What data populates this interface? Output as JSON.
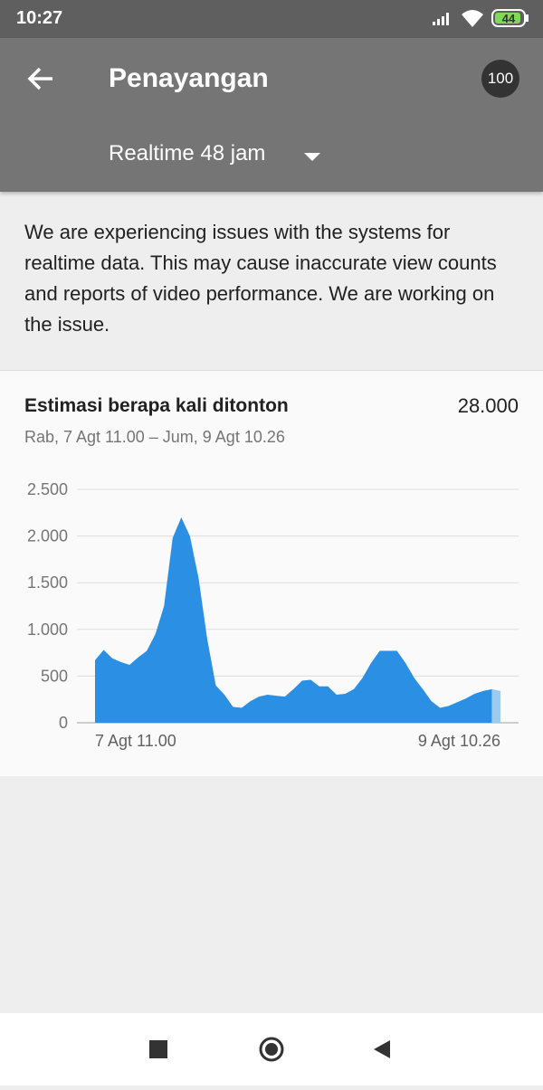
{
  "status": {
    "time": "10:27",
    "battery": "44"
  },
  "header": {
    "title": "Penayangan",
    "badge": "100",
    "dropdown": "Realtime 48 jam"
  },
  "notice": "We are experiencing issues with the systems for realtime data. This may cause inaccurate view counts and reports of video performance. We are working on the issue.",
  "card": {
    "title": "Estimasi berapa kali ditonton",
    "total": "28.000",
    "range": "Rab, 7 Agt 11.00 – Jum, 9 Agt 10.26"
  },
  "chart_data": {
    "type": "area",
    "color": "#2b8fe3",
    "partial_color": "#9ccbf0",
    "categories": [
      "7 Agt 11.00",
      null,
      null,
      null,
      null,
      null,
      null,
      null,
      null,
      null,
      null,
      null,
      null,
      null,
      null,
      null,
      null,
      null,
      null,
      null,
      null,
      null,
      null,
      null,
      null,
      null,
      null,
      null,
      null,
      null,
      null,
      null,
      null,
      null,
      null,
      null,
      null,
      null,
      null,
      null,
      null,
      null,
      null,
      null,
      null,
      null,
      null,
      "9 Agt 10.26"
    ],
    "values": [
      670,
      780,
      690,
      650,
      620,
      700,
      770,
      950,
      1250,
      1980,
      2200,
      2000,
      1550,
      900,
      400,
      300,
      170,
      160,
      230,
      280,
      300,
      290,
      280,
      360,
      450,
      460,
      390,
      390,
      300,
      310,
      360,
      480,
      640,
      770,
      770,
      770,
      640,
      480,
      360,
      230,
      160,
      180,
      220,
      260,
      310,
      340,
      360,
      340
    ],
    "ylim": [
      0,
      2500
    ],
    "yticks": [
      0,
      {
        "value": 500,
        "label": "500"
      },
      {
        "value": 1000,
        "label": "1.000"
      },
      {
        "value": 1500,
        "label": "1.500"
      },
      {
        "value": 2000,
        "label": "2.000"
      },
      {
        "value": 2500,
        "label": "2.500"
      }
    ],
    "grid": true
  }
}
